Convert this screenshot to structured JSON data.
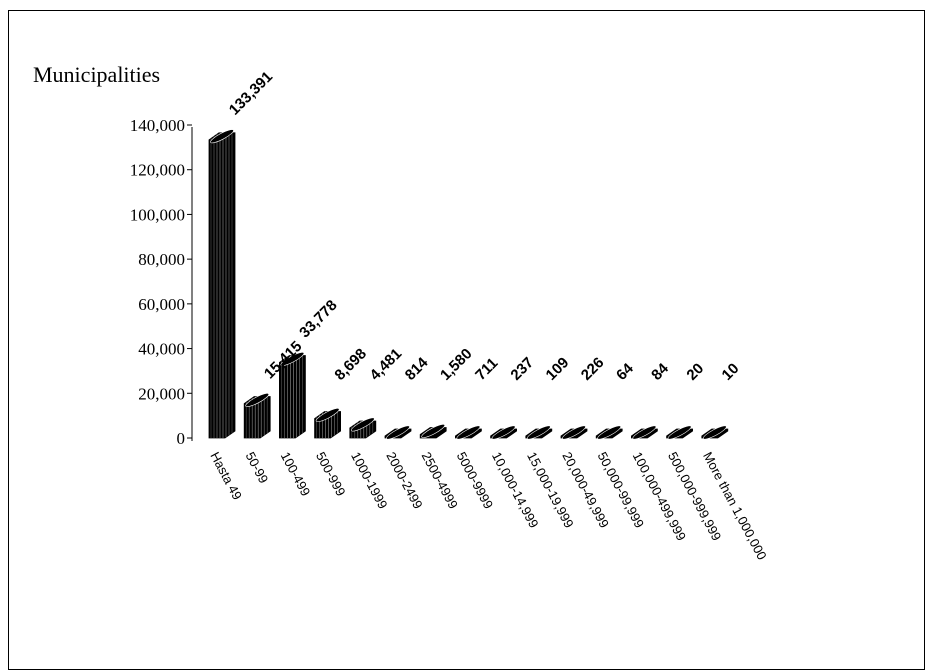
{
  "chart_data": {
    "type": "bar",
    "title": "",
    "ylabel": "Municipalities",
    "xlabel": "",
    "ylim": [
      0,
      140000
    ],
    "yticks": [
      0,
      20000,
      40000,
      60000,
      80000,
      100000,
      120000,
      140000
    ],
    "ytick_labels": [
      "0",
      "20,000",
      "40,000",
      "60,000",
      "80,000",
      "100,000",
      "120,000",
      "140,000"
    ],
    "categories": [
      "Hasta 49",
      "50-99",
      "100-499",
      "500-999",
      "1000-1999",
      "2000-2499",
      "2500-4999",
      "5000-9999",
      "10,000-14,999",
      "15,000-19,999",
      "20,000-49,999",
      "50,000-99,999",
      "100,000-499,999",
      "500,000-999,999",
      "More than 1,000,000"
    ],
    "values": [
      133391,
      15415,
      33778,
      8698,
      4481,
      814,
      1580,
      711,
      237,
      109,
      226,
      64,
      84,
      20,
      10
    ],
    "value_labels": [
      "133,391",
      "15,415",
      "33,778",
      "8,698",
      "4,481",
      "814",
      "1,580",
      "711",
      "237",
      "109",
      "226",
      "64",
      "84",
      "20",
      "10"
    ],
    "bar_color": "#000000",
    "grid": false,
    "legend": "none",
    "style": "3d-cylinder"
  }
}
